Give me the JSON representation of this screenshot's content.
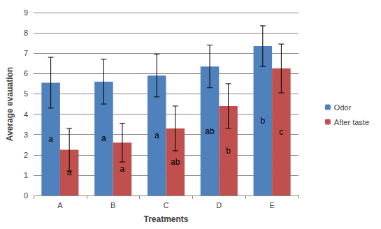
{
  "chart_data": {
    "type": "bar",
    "x_label": "Treatments",
    "y_label": "Average evauation",
    "categories": [
      "A",
      "B",
      "C",
      "D",
      "E"
    ],
    "series": [
      {
        "name": "Odor",
        "color": "#4f81bd",
        "values": [
          5.55,
          5.6,
          5.9,
          6.35,
          7.35
        ],
        "errors": [
          1.25,
          1.1,
          1.05,
          1.05,
          1.0
        ],
        "letters": [
          "a",
          "a",
          "a",
          "ab",
          "b"
        ]
      },
      {
        "name": "After taste",
        "color": "#c0504d",
        "values": [
          2.25,
          2.6,
          3.3,
          4.4,
          6.25
        ],
        "errors": [
          1.05,
          0.95,
          1.1,
          1.1,
          1.2
        ],
        "letters": [
          "a",
          "a",
          "ab",
          "b",
          "c"
        ]
      }
    ],
    "ylim": [
      0,
      9
    ],
    "yticks": [
      0,
      1,
      2,
      3,
      4,
      5,
      6,
      7,
      8,
      9
    ],
    "grid": true,
    "legend": "right"
  }
}
